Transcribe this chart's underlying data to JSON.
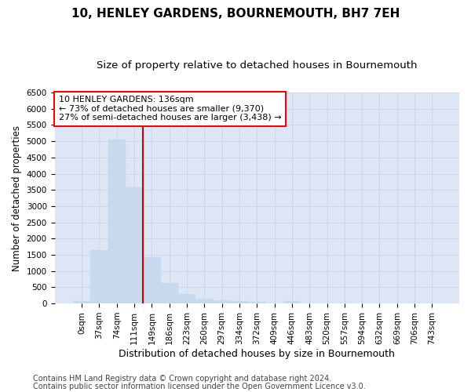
{
  "title": "10, HENLEY GARDENS, BOURNEMOUTH, BH7 7EH",
  "subtitle": "Size of property relative to detached houses in Bournemouth",
  "xlabel": "Distribution of detached houses by size in Bournemouth",
  "ylabel": "Number of detached properties",
  "footer_line1": "Contains HM Land Registry data © Crown copyright and database right 2024.",
  "footer_line2": "Contains public sector information licensed under the Open Government Licence v3.0.",
  "bar_labels": [
    "0sqm",
    "37sqm",
    "74sqm",
    "111sqm",
    "149sqm",
    "186sqm",
    "223sqm",
    "260sqm",
    "297sqm",
    "334sqm",
    "372sqm",
    "409sqm",
    "446sqm",
    "483sqm",
    "520sqm",
    "557sqm",
    "594sqm",
    "632sqm",
    "669sqm",
    "706sqm",
    "743sqm"
  ],
  "bar_values": [
    75,
    1650,
    5050,
    3590,
    1420,
    620,
    290,
    155,
    110,
    75,
    45,
    0,
    75,
    0,
    0,
    0,
    0,
    0,
    0,
    0,
    0
  ],
  "bar_color": "#c8d9ee",
  "bar_edge_color": "#c8d9ee",
  "grid_color": "#c8d4e8",
  "background_color": "#dce6f5",
  "fig_background_color": "#ffffff",
  "vline_x": 3.5,
  "vline_color": "#cc0000",
  "annotation_line1": "10 HENLEY GARDENS: 136sqm",
  "annotation_line2": "← 73% of detached houses are smaller (9,370)",
  "annotation_line3": "27% of semi-detached houses are larger (3,438) →",
  "ylim": [
    0,
    6500
  ],
  "yticks": [
    0,
    500,
    1000,
    1500,
    2000,
    2500,
    3000,
    3500,
    4000,
    4500,
    5000,
    5500,
    6000,
    6500
  ],
  "title_fontsize": 11,
  "subtitle_fontsize": 9.5,
  "xlabel_fontsize": 9,
  "ylabel_fontsize": 8.5,
  "tick_fontsize": 7.5,
  "annotation_fontsize": 8,
  "footer_fontsize": 7
}
